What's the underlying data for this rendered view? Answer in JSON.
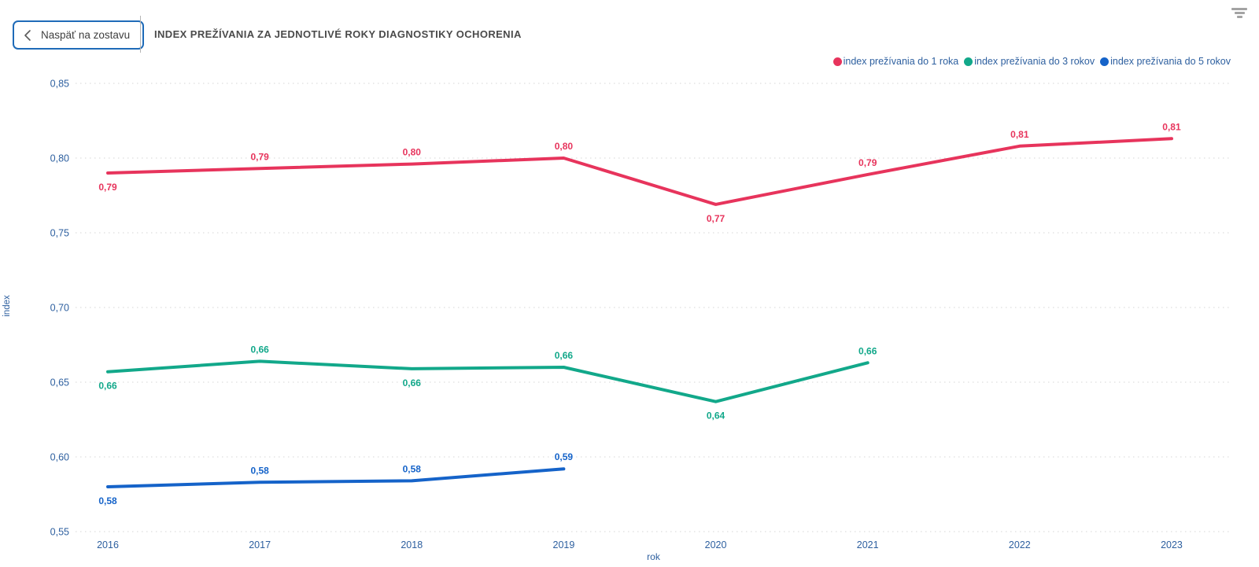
{
  "header": {
    "back_button_label": "Naspäť na zostavu",
    "title": "INDEX PREŽÍVANIA ZA JEDNOTLIVÉ ROKY DIAGNOSTIKY OCHORENIA"
  },
  "icons": {
    "back": "chevron-left-icon",
    "top_right": "filter-icon"
  },
  "colors": {
    "series_1_year": "#e7345c",
    "series_3_years": "#12a88a",
    "series_5_years": "#1563c9",
    "axis_text": "#2d5f9f",
    "title_text": "#4a4a4a",
    "gridline": "#d6d6d6",
    "button_border": "#1f6bb8"
  },
  "chart_data": {
    "type": "line",
    "title": "INDEX PREŽÍVANIA ZA JEDNOTLIVÉ ROKY DIAGNOSTIKY OCHORENIA",
    "xlabel": "rok",
    "ylabel": "index",
    "ylim": [
      0.55,
      0.85
    ],
    "grid": "horizontal-dotted",
    "legend_position": "top-right",
    "y_ticks": [
      0.85,
      0.8,
      0.75,
      0.7,
      0.65,
      0.6,
      0.55
    ],
    "y_tick_labels": [
      "0,85",
      "0,80",
      "0,75",
      "0,70",
      "0,65",
      "0,60",
      "0,55"
    ],
    "x_ticks": [
      2016,
      2017,
      2018,
      2019,
      2020,
      2021,
      2022,
      2023
    ],
    "x_tick_labels": [
      "2016",
      "2017",
      "2018",
      "2019",
      "2020",
      "2021",
      "2022",
      "2023"
    ],
    "series": [
      {
        "name": "index prežívania do 1 roka",
        "color": "#e7345c",
        "x": [
          2016,
          2017,
          2018,
          2019,
          2020,
          2021,
          2022,
          2023
        ],
        "values": [
          0.79,
          0.793,
          0.796,
          0.8,
          0.769,
          0.789,
          0.808,
          0.813
        ],
        "labels": [
          "0,79",
          "0,79",
          "0,80",
          "0,80",
          "0,77",
          "0,79",
          "0,81",
          "0,81"
        ],
        "label_pos": [
          "below",
          "above",
          "above",
          "above",
          "below",
          "above",
          "above",
          "above"
        ]
      },
      {
        "name": "index prežívania do 3 rokov",
        "color": "#12a88a",
        "x": [
          2016,
          2017,
          2018,
          2019,
          2020,
          2021
        ],
        "values": [
          0.657,
          0.664,
          0.659,
          0.66,
          0.637,
          0.663
        ],
        "labels": [
          "0,66",
          "0,66",
          "0,66",
          "0,66",
          "0,64",
          "0,66"
        ],
        "label_pos": [
          "below",
          "above",
          "below",
          "above",
          "below",
          "above"
        ]
      },
      {
        "name": "index prežívania do 5 rokov",
        "color": "#1563c9",
        "x": [
          2016,
          2017,
          2018,
          2019
        ],
        "values": [
          0.58,
          0.583,
          0.584,
          0.592
        ],
        "labels": [
          "0,58",
          "0,58",
          "0,58",
          "0,59"
        ],
        "label_pos": [
          "below",
          "above",
          "above",
          "above"
        ]
      }
    ]
  }
}
